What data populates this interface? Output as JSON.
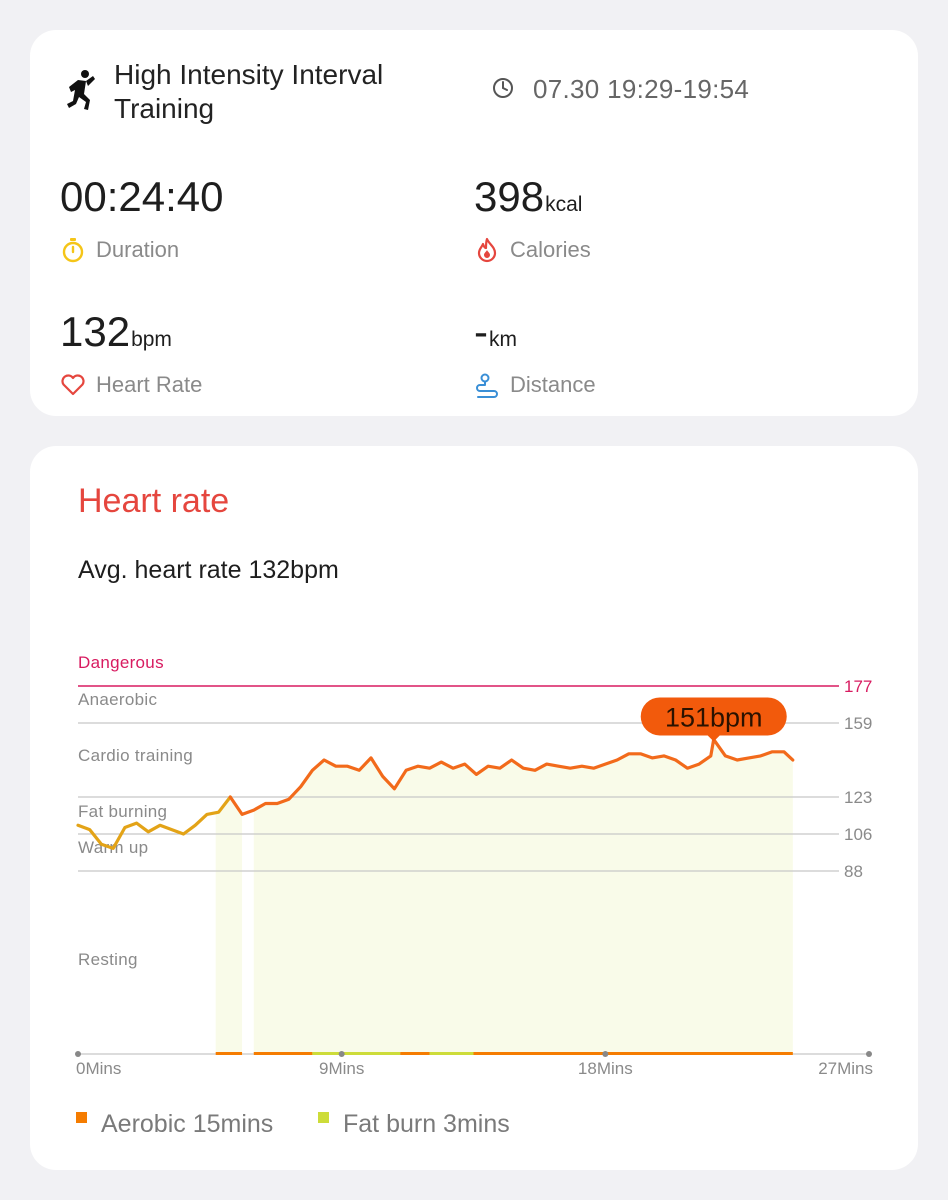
{
  "summary": {
    "activity_title": "High Intensity Interval Training",
    "time_range": "07.30 19:29-19:54",
    "duration": {
      "value": "00:24:40",
      "unit": "",
      "label": "Duration",
      "icon": "stopwatch-icon",
      "color": "#f5c518"
    },
    "calories": {
      "value": "398",
      "unit": "kcal",
      "label": "Calories",
      "icon": "flame-icon",
      "color": "#e5463e"
    },
    "heart_rate": {
      "value": "132",
      "unit": "bpm",
      "label": "Heart Rate",
      "icon": "heart-icon",
      "color": "#e5463e"
    },
    "distance": {
      "value": "-",
      "unit": "km",
      "label": "Distance",
      "icon": "route-icon",
      "color": "#3a8fd6"
    }
  },
  "heart_rate_card": {
    "title": "Heart rate",
    "avg_text": "Avg. heart rate 132bpm",
    "peak_label": "151bpm",
    "legend": [
      {
        "label": "Aerobic 15mins",
        "color": "#f57c00"
      },
      {
        "label": "Fat burn 3mins",
        "color": "#cddc39"
      }
    ]
  },
  "chart_data": {
    "type": "line",
    "xlabel": "",
    "ylabel": "",
    "x_ticks": [
      "0Mins",
      "9Mins",
      "18Mins",
      "27Mins"
    ],
    "x_range": [
      0,
      27
    ],
    "y_range": [
      60,
      182
    ],
    "zones": [
      {
        "name": "Dangerous",
        "threshold": 177,
        "color": "#d81b60"
      },
      {
        "name": "Anaerobic",
        "threshold": 159,
        "color": "#999999"
      },
      {
        "name": "Cardio training",
        "threshold": 123,
        "color": "#999999"
      },
      {
        "name": "Fat burning",
        "threshold": 106,
        "color": "#999999"
      },
      {
        "name": "Warm up",
        "threshold": 88,
        "color": "#999999"
      },
      {
        "name": "Resting",
        "threshold": null,
        "color": "#999999"
      }
    ],
    "peak": {
      "x": 21.7,
      "y": 151
    },
    "series": [
      {
        "values": [
          [
            0.0,
            110
          ],
          [
            0.4,
            108
          ],
          [
            0.8,
            101
          ],
          [
            1.2,
            99
          ],
          [
            1.6,
            109
          ],
          [
            2.0,
            111
          ],
          [
            2.4,
            107
          ],
          [
            2.8,
            110
          ],
          [
            3.2,
            108
          ],
          [
            3.6,
            106
          ],
          [
            4.0,
            110
          ],
          [
            4.4,
            115
          ],
          [
            4.8,
            116
          ],
          [
            5.2,
            123
          ],
          [
            5.6,
            115
          ],
          [
            6.0,
            117
          ],
          [
            6.4,
            120
          ],
          [
            6.8,
            120
          ],
          [
            7.2,
            122
          ],
          [
            7.6,
            128
          ],
          [
            8.0,
            136
          ],
          [
            8.4,
            141
          ],
          [
            8.8,
            138
          ],
          [
            9.2,
            138
          ],
          [
            9.6,
            136
          ],
          [
            10.0,
            142
          ],
          [
            10.4,
            133
          ],
          [
            10.8,
            127
          ],
          [
            11.2,
            136
          ],
          [
            11.6,
            138
          ],
          [
            12.0,
            137
          ],
          [
            12.4,
            140
          ],
          [
            12.8,
            137
          ],
          [
            13.2,
            139
          ],
          [
            13.6,
            134
          ],
          [
            14.0,
            138
          ],
          [
            14.4,
            137
          ],
          [
            14.8,
            141
          ],
          [
            15.2,
            137
          ],
          [
            15.6,
            136
          ],
          [
            16.0,
            139
          ],
          [
            16.4,
            138
          ],
          [
            16.8,
            137
          ],
          [
            17.2,
            138
          ],
          [
            17.6,
            137
          ],
          [
            18.0,
            139
          ],
          [
            18.4,
            141
          ],
          [
            18.8,
            144
          ],
          [
            19.2,
            144
          ],
          [
            19.6,
            142
          ],
          [
            20.0,
            143
          ],
          [
            20.4,
            141
          ],
          [
            20.8,
            137
          ],
          [
            21.2,
            139
          ],
          [
            21.6,
            143
          ],
          [
            21.7,
            151
          ],
          [
            22.1,
            143
          ],
          [
            22.5,
            141
          ],
          [
            22.9,
            142
          ],
          [
            23.3,
            143
          ],
          [
            23.7,
            145
          ],
          [
            24.1,
            145
          ],
          [
            24.4,
            141
          ]
        ]
      }
    ],
    "fill_segments": [
      [
        4.7,
        5.6
      ],
      [
        6.0,
        24.4
      ]
    ],
    "zone_bar_segments": [
      {
        "zone": "Aerobic",
        "from": 4.7,
        "to": 5.6
      },
      {
        "zone": "Aerobic",
        "from": 6.0,
        "to": 8.0
      },
      {
        "zone": "Fat burn",
        "from": 8.0,
        "to": 11.0
      },
      {
        "zone": "Aerobic",
        "from": 11.0,
        "to": 12.0
      },
      {
        "zone": "Fat burn",
        "from": 12.0,
        "to": 13.5
      },
      {
        "zone": "Aerobic",
        "from": 13.5,
        "to": 24.4
      }
    ]
  }
}
